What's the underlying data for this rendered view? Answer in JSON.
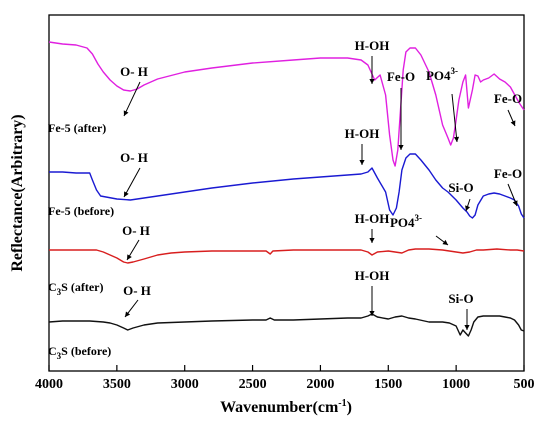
{
  "chart_data": {
    "type": "line",
    "xlabel": "Wavenumber(cm",
    "xlabel_sup": "-1",
    "xlabel_suffix": ")",
    "ylabel": "Reflectance(Arbitrary)",
    "xlim": [
      4000,
      500
    ],
    "x_reversed": true,
    "y_tick_labels_shown": false,
    "x_ticks": [
      4000,
      3500,
      3000,
      2500,
      2000,
      1500,
      1000,
      500
    ],
    "grid": false,
    "legend": "none",
    "series": [
      {
        "label_main": "Fe-5 (after)",
        "label_sub": "",
        "color": "#e020e0",
        "points": [
          [
            4000,
            42
          ],
          [
            3900,
            44
          ],
          [
            3800,
            45
          ],
          [
            3720,
            48
          ],
          [
            3680,
            54
          ],
          [
            3640,
            64
          ],
          [
            3600,
            72
          ],
          [
            3550,
            80
          ],
          [
            3500,
            86
          ],
          [
            3450,
            90
          ],
          [
            3400,
            91
          ],
          [
            3350,
            89
          ],
          [
            3300,
            85
          ],
          [
            3200,
            79
          ],
          [
            3000,
            72
          ],
          [
            2800,
            68
          ],
          [
            2500,
            63
          ],
          [
            2200,
            60
          ],
          [
            2000,
            58
          ],
          [
            1800,
            58
          ],
          [
            1700,
            60
          ],
          [
            1650,
            65
          ],
          [
            1600,
            80
          ],
          [
            1560,
            75
          ],
          [
            1520,
            95
          ],
          [
            1490,
            135
          ],
          [
            1465,
            160
          ],
          [
            1450,
            166
          ],
          [
            1430,
            150
          ],
          [
            1410,
            110
          ],
          [
            1390,
            70
          ],
          [
            1370,
            52
          ],
          [
            1340,
            48
          ],
          [
            1300,
            48
          ],
          [
            1260,
            55
          ],
          [
            1200,
            72
          ],
          [
            1150,
            95
          ],
          [
            1100,
            125
          ],
          [
            1060,
            138
          ],
          [
            1040,
            145
          ],
          [
            1020,
            138
          ],
          [
            1000,
            120
          ],
          [
            980,
            100
          ],
          [
            950,
            82
          ],
          [
            930,
            75
          ],
          [
            910,
            108
          ],
          [
            880,
            90
          ],
          [
            860,
            75
          ],
          [
            840,
            76
          ],
          [
            820,
            82
          ],
          [
            800,
            80
          ],
          [
            760,
            78
          ],
          [
            720,
            74
          ],
          [
            680,
            79
          ],
          [
            640,
            82
          ],
          [
            600,
            87
          ],
          [
            560,
            97
          ],
          [
            530,
            104
          ],
          [
            510,
            108
          ],
          [
            500,
            110
          ]
        ]
      },
      {
        "label_main": "Fe-5 (before)",
        "label_sub": "",
        "color": "#1a1ad2",
        "points": [
          [
            4000,
            172
          ],
          [
            3900,
            172
          ],
          [
            3800,
            173
          ],
          [
            3700,
            173
          ],
          [
            3680,
            180
          ],
          [
            3650,
            190
          ],
          [
            3620,
            196
          ],
          [
            3500,
            199
          ],
          [
            3400,
            200
          ],
          [
            3300,
            198
          ],
          [
            3200,
            196
          ],
          [
            3000,
            192
          ],
          [
            2800,
            188
          ],
          [
            2500,
            183
          ],
          [
            2200,
            179
          ],
          [
            2000,
            177
          ],
          [
            1800,
            175
          ],
          [
            1700,
            174
          ],
          [
            1650,
            172
          ],
          [
            1620,
            168
          ],
          [
            1580,
            178
          ],
          [
            1550,
            185
          ],
          [
            1520,
            192
          ],
          [
            1490,
            210
          ],
          [
            1465,
            215
          ],
          [
            1440,
            208
          ],
          [
            1420,
            192
          ],
          [
            1400,
            170
          ],
          [
            1370,
            158
          ],
          [
            1340,
            154
          ],
          [
            1300,
            154
          ],
          [
            1260,
            160
          ],
          [
            1200,
            170
          ],
          [
            1150,
            180
          ],
          [
            1100,
            188
          ],
          [
            1060,
            192
          ],
          [
            1000,
            200
          ],
          [
            950,
            208
          ],
          [
            920,
            212
          ],
          [
            900,
            216
          ],
          [
            880,
            218
          ],
          [
            860,
            215
          ],
          [
            840,
            205
          ],
          [
            800,
            196
          ],
          [
            760,
            194
          ],
          [
            720,
            193
          ],
          [
            680,
            194
          ],
          [
            640,
            196
          ],
          [
            600,
            198
          ],
          [
            570,
            200
          ],
          [
            540,
            206
          ],
          [
            520,
            214
          ],
          [
            500,
            218
          ]
        ]
      },
      {
        "label_main": "C",
        "label_sub": "3",
        "label_rest": "S (after)",
        "color": "#d81e1e",
        "points": [
          [
            4000,
            250
          ],
          [
            3900,
            250
          ],
          [
            3800,
            250
          ],
          [
            3700,
            250
          ],
          [
            3650,
            250
          ],
          [
            3600,
            252
          ],
          [
            3550,
            255
          ],
          [
            3500,
            258
          ],
          [
            3450,
            262
          ],
          [
            3420,
            263
          ],
          [
            3380,
            262
          ],
          [
            3300,
            259
          ],
          [
            3200,
            255
          ],
          [
            3100,
            253
          ],
          [
            3000,
            252
          ],
          [
            2800,
            251
          ],
          [
            2500,
            251
          ],
          [
            2400,
            251
          ],
          [
            2370,
            254
          ],
          [
            2350,
            251
          ],
          [
            2200,
            250
          ],
          [
            2000,
            250
          ],
          [
            1800,
            250
          ],
          [
            1700,
            250
          ],
          [
            1650,
            252
          ],
          [
            1620,
            255
          ],
          [
            1580,
            252
          ],
          [
            1500,
            251
          ],
          [
            1450,
            252
          ],
          [
            1400,
            253
          ],
          [
            1350,
            250
          ],
          [
            1300,
            249
          ],
          [
            1200,
            249
          ],
          [
            1100,
            250
          ],
          [
            1000,
            252
          ],
          [
            950,
            253
          ],
          [
            900,
            252
          ],
          [
            850,
            250
          ],
          [
            800,
            250
          ],
          [
            700,
            249
          ],
          [
            600,
            250
          ],
          [
            550,
            250
          ],
          [
            500,
            251
          ]
        ]
      },
      {
        "label_main": "C",
        "label_sub": "3",
        "label_rest": "S (before)",
        "color": "#111111",
        "points": [
          [
            4000,
            322
          ],
          [
            3900,
            321
          ],
          [
            3800,
            321
          ],
          [
            3700,
            321
          ],
          [
            3600,
            322
          ],
          [
            3550,
            323
          ],
          [
            3500,
            325
          ],
          [
            3450,
            328
          ],
          [
            3420,
            330
          ],
          [
            3380,
            328
          ],
          [
            3300,
            325
          ],
          [
            3200,
            323
          ],
          [
            3000,
            322
          ],
          [
            2800,
            321
          ],
          [
            2500,
            320
          ],
          [
            2400,
            320
          ],
          [
            2370,
            318
          ],
          [
            2340,
            320
          ],
          [
            2200,
            320
          ],
          [
            2000,
            319
          ],
          [
            1800,
            318
          ],
          [
            1700,
            318
          ],
          [
            1650,
            316
          ],
          [
            1620,
            314
          ],
          [
            1580,
            317
          ],
          [
            1500,
            319
          ],
          [
            1450,
            317
          ],
          [
            1400,
            316
          ],
          [
            1350,
            318
          ],
          [
            1300,
            319
          ],
          [
            1200,
            322
          ],
          [
            1100,
            322
          ],
          [
            1050,
            323
          ],
          [
            1000,
            326
          ],
          [
            970,
            335
          ],
          [
            950,
            330
          ],
          [
            930,
            333
          ],
          [
            910,
            336
          ],
          [
            890,
            330
          ],
          [
            870,
            322
          ],
          [
            840,
            317
          ],
          [
            800,
            316
          ],
          [
            760,
            316
          ],
          [
            720,
            316
          ],
          [
            680,
            316
          ],
          [
            640,
            317
          ],
          [
            600,
            318
          ],
          [
            570,
            320
          ],
          [
            540,
            325
          ],
          [
            520,
            330
          ],
          [
            500,
            331
          ]
        ]
      }
    ],
    "annotations": [
      {
        "main": "O- H",
        "sup": ""
      },
      {
        "main": "H-OH",
        "sup": ""
      },
      {
        "main": "Fe-O",
        "sup": ""
      },
      {
        "main": "PO4",
        "sup": "3-"
      },
      {
        "main": "Fe-O",
        "sup": ""
      },
      {
        "main": "O- H",
        "sup": ""
      },
      {
        "main": "H-OH",
        "sup": ""
      },
      {
        "main": "Si-O",
        "sup": ""
      },
      {
        "main": "Fe-O",
        "sup": ""
      },
      {
        "main": "O- H",
        "sup": ""
      },
      {
        "main": "H-OH",
        "sup": ""
      },
      {
        "main": "PO4",
        "sup": "3-"
      },
      {
        "main": "O- H",
        "sup": ""
      },
      {
        "main": "H-OH",
        "sup": ""
      },
      {
        "main": "Si-O",
        "sup": ""
      }
    ]
  }
}
